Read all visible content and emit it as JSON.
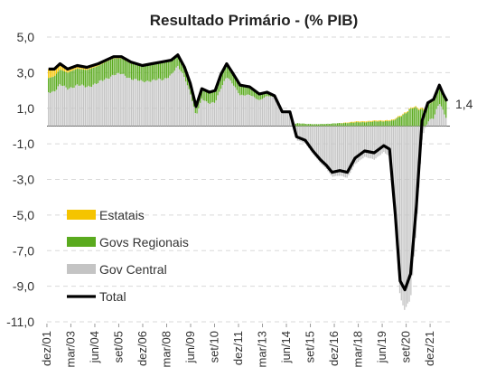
{
  "chart_data": {
    "type": "area",
    "title": "Resultado Primário - (% PIB)",
    "xlabel": "",
    "ylabel": "",
    "ylim": [
      -11,
      5
    ],
    "yticks": [
      "5,0",
      "3,0",
      "1,0",
      "-1,0",
      "-3,0",
      "-5,0",
      "-7,0",
      "-9,0",
      "-11,0"
    ],
    "yticks_values": [
      5,
      3,
      1,
      -1,
      -3,
      -5,
      -7,
      -9,
      -11
    ],
    "xticks": [
      "dez/01",
      "mar/03",
      "jun/04",
      "set/05",
      "dez/06",
      "mar/08",
      "jun/09",
      "set/10",
      "dez/11",
      "mar/13",
      "jun/14",
      "set/15",
      "dez/16",
      "mar/18",
      "jun/19",
      "set/20",
      "dez/21"
    ],
    "grid": "horizontal-dashed",
    "legend_position": "bottom-left",
    "end_label": "1,4",
    "series": [
      {
        "name": "Estatais",
        "color": "#f5c400",
        "t": [
          2002,
          2003,
          2004,
          2005,
          2006,
          2007,
          2008,
          2009,
          2010,
          2011,
          2012,
          2013,
          2014,
          2015,
          2016,
          2017,
          2018,
          2019,
          2020,
          2021,
          2022
        ],
        "values": [
          0.5,
          0.2,
          0.15,
          0.1,
          0.1,
          0.05,
          0.05,
          0.05,
          0.05,
          0.05,
          0.05,
          0.05,
          0.0,
          0.0,
          0.0,
          0.0,
          0.05,
          0.05,
          0.05,
          0.05,
          0.1
        ]
      },
      {
        "name": "Govs Regionais",
        "color": "#5aaa1e",
        "t": [
          2002,
          2003,
          2004,
          2005,
          2006,
          2007,
          2008,
          2009,
          2010,
          2011,
          2012,
          2013,
          2014,
          2015,
          2016,
          2017,
          2018,
          2019,
          2020,
          2021,
          2022
        ],
        "values": [
          0.8,
          0.9,
          0.95,
          0.95,
          0.85,
          0.85,
          0.95,
          0.5,
          0.5,
          0.7,
          0.5,
          0.3,
          0.0,
          0.15,
          0.1,
          0.15,
          0.2,
          0.25,
          0.3,
          1.0,
          0.9
        ]
      },
      {
        "name": "Gov Central",
        "color": "#c4c4c4",
        "t": [
          2002,
          2003,
          2004,
          2005,
          2006,
          2007,
          2008,
          2009,
          2010,
          2011,
          2012,
          2013,
          2014,
          2015,
          2016,
          2017,
          2018,
          2019,
          2020,
          2021,
          2022
        ],
        "values": [
          1.9,
          2.2,
          2.4,
          2.6,
          2.3,
          2.2,
          2.6,
          1.4,
          1.3,
          2.3,
          1.6,
          1.3,
          0.2,
          -1.9,
          -2.6,
          -2.3,
          -1.8,
          -1.3,
          -9.2,
          -0.3,
          0.4
        ]
      },
      {
        "name": "Total",
        "color": "#000000",
        "t": [
          2002.0,
          2002.3,
          2002.6,
          2003.0,
          2003.5,
          2004.0,
          2004.6,
          2005.0,
          2005.4,
          2005.8,
          2006.3,
          2006.9,
          2007.4,
          2007.9,
          2008.4,
          2008.75,
          2009.1,
          2009.4,
          2009.7,
          2010.0,
          2010.4,
          2010.7,
          2011.0,
          2011.3,
          2011.6,
          2012.0,
          2012.5,
          2013.0,
          2013.4,
          2013.8,
          2014.2,
          2014.6,
          2014.95,
          2015.4,
          2015.8,
          2016.2,
          2016.5,
          2016.8,
          2017.2,
          2017.6,
          2018.0,
          2018.5,
          2019.0,
          2019.5,
          2019.8,
          2020.1,
          2020.35,
          2020.6,
          2020.9,
          2021.2,
          2021.5,
          2021.8,
          2022.1,
          2022.4,
          2022.6,
          2022.8
        ],
        "values": [
          3.2,
          3.2,
          3.5,
          3.2,
          3.4,
          3.3,
          3.5,
          3.7,
          3.9,
          3.9,
          3.6,
          3.4,
          3.5,
          3.6,
          3.7,
          4.0,
          3.3,
          2.4,
          1.1,
          2.1,
          1.9,
          2.0,
          2.9,
          3.5,
          3.0,
          2.3,
          2.2,
          1.8,
          1.9,
          1.7,
          0.8,
          0.8,
          -0.6,
          -0.8,
          -1.4,
          -1.9,
          -2.2,
          -2.6,
          -2.5,
          -2.6,
          -1.8,
          -1.4,
          -1.5,
          -1.1,
          -1.3,
          -5.0,
          -8.7,
          -9.2,
          -8.3,
          -4.5,
          0.3,
          1.3,
          1.5,
          2.3,
          1.8,
          1.4
        ]
      }
    ]
  }
}
